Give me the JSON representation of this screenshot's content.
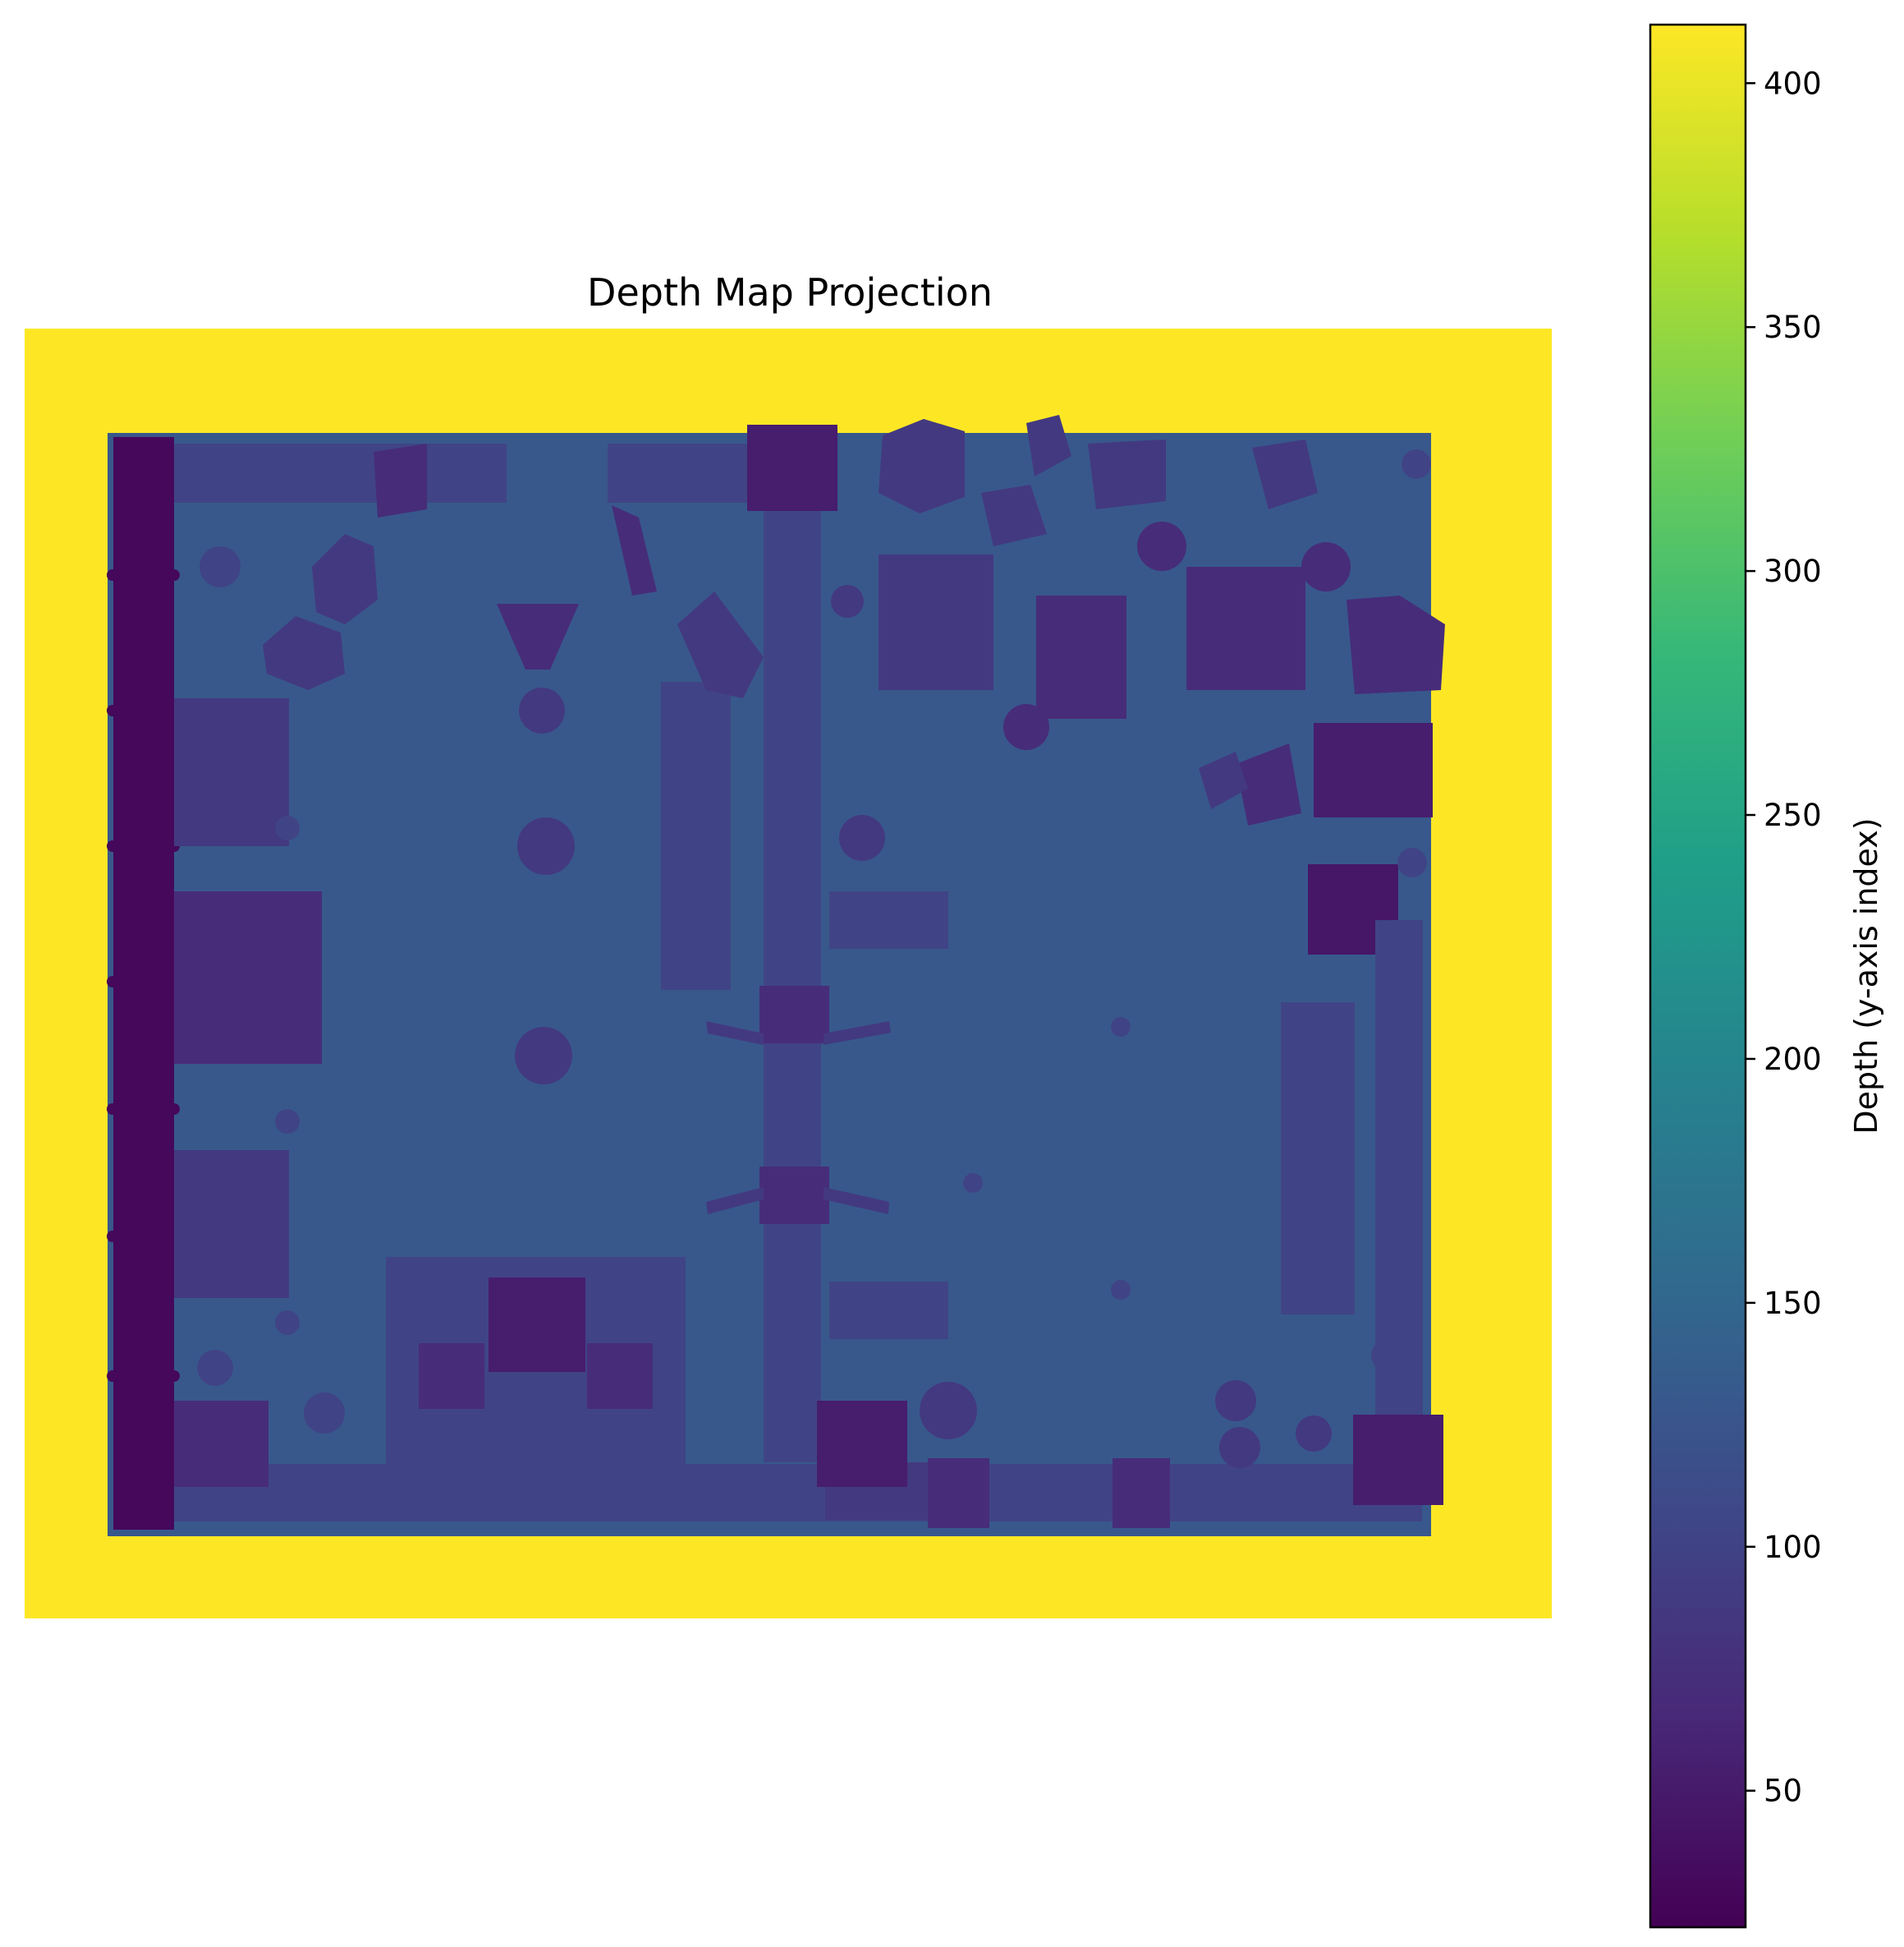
{
  "chart_data": {
    "type": "heatmap",
    "title": "Depth Map Projection",
    "xlabel": "",
    "ylabel": "",
    "axes_visible": false,
    "colormap": "viridis",
    "colorbar": {
      "label": "Depth (y-axis index)",
      "range": [
        22,
        412
      ],
      "ticks": [
        50,
        100,
        150,
        200,
        250,
        300,
        350,
        400
      ],
      "tick_labels": [
        "50",
        "100",
        "150",
        "200",
        "250",
        "300",
        "350",
        "400"
      ]
    },
    "values": {
      "background_fill": 412,
      "floor": 130,
      "wall_strip": 30,
      "furniture_range": [
        45,
        110
      ]
    }
  },
  "colors": {
    "viridis_stops": [
      "#440154",
      "#482878",
      "#3e4989",
      "#31688e",
      "#26828e",
      "#1f9e89",
      "#35b779",
      "#6ece58",
      "#b5de2b",
      "#fde725"
    ]
  }
}
